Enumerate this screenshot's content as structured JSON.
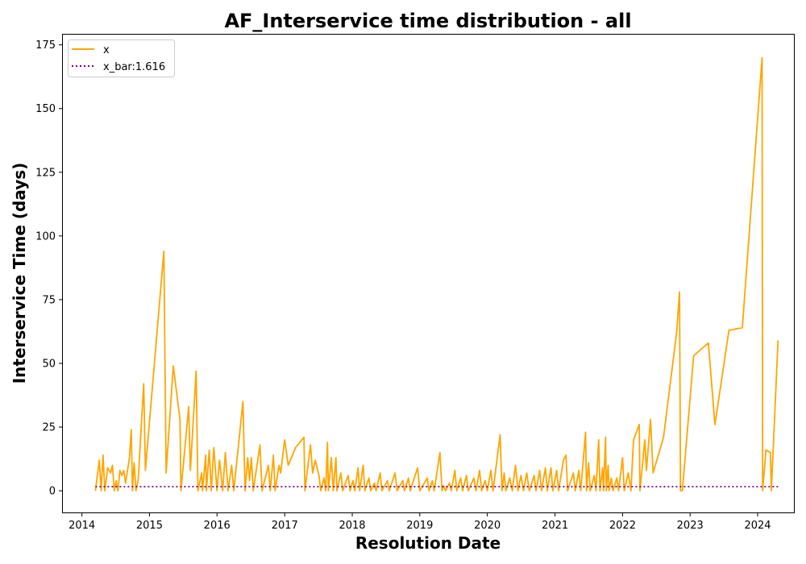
{
  "chart_data": {
    "type": "line",
    "title": "AF_Interservice time distribution - all",
    "xlabel": "Resolution Date",
    "ylabel": "Interservice Time (days)",
    "xlim": [
      "2013-09-20",
      "2024-07-15"
    ],
    "ylim": [
      -8.5,
      179
    ],
    "x_ticks": [
      "2014",
      "2015",
      "2016",
      "2017",
      "2018",
      "2019",
      "2020",
      "2021",
      "2022",
      "2023",
      "2024"
    ],
    "y_ticks": [
      0,
      25,
      50,
      75,
      100,
      125,
      150,
      175
    ],
    "grid": false,
    "legend_position": "top-left",
    "series": [
      {
        "name": "x",
        "color": "#ffa500",
        "style": "solid",
        "points": [
          [
            "2014-03-15",
            0
          ],
          [
            "2014-04-05",
            12
          ],
          [
            "2014-04-15",
            0
          ],
          [
            "2014-04-25",
            14
          ],
          [
            "2014-05-05",
            0
          ],
          [
            "2014-05-20",
            9
          ],
          [
            "2014-06-05",
            7
          ],
          [
            "2014-06-15",
            10
          ],
          [
            "2014-06-25",
            0
          ],
          [
            "2014-07-05",
            4
          ],
          [
            "2014-07-15",
            0
          ],
          [
            "2014-07-25",
            8
          ],
          [
            "2014-08-05",
            6
          ],
          [
            "2014-08-15",
            8
          ],
          [
            "2014-08-25",
            3
          ],
          [
            "2014-09-15",
            13
          ],
          [
            "2014-09-25",
            24
          ],
          [
            "2014-10-01",
            0
          ],
          [
            "2014-10-10",
            11
          ],
          [
            "2014-10-20",
            0
          ],
          [
            "2014-11-01",
            4
          ],
          [
            "2014-12-01",
            42
          ],
          [
            "2014-12-10",
            8
          ],
          [
            "2015-03-20",
            94
          ],
          [
            "2015-04-01",
            7
          ],
          [
            "2015-05-10",
            49
          ],
          [
            "2015-06-15",
            28
          ],
          [
            "2015-06-20",
            0
          ],
          [
            "2015-08-01",
            33
          ],
          [
            "2015-08-10",
            8
          ],
          [
            "2015-09-10",
            47
          ],
          [
            "2015-09-20",
            0
          ],
          [
            "2015-10-10",
            7
          ],
          [
            "2015-10-15",
            0
          ],
          [
            "2015-11-01",
            14
          ],
          [
            "2015-11-05",
            0
          ],
          [
            "2015-11-20",
            16
          ],
          [
            "2015-12-01",
            0
          ],
          [
            "2015-12-15",
            17
          ],
          [
            "2016-01-01",
            0
          ],
          [
            "2016-01-15",
            12
          ],
          [
            "2016-02-01",
            0
          ],
          [
            "2016-02-15",
            15
          ],
          [
            "2016-03-01",
            0
          ],
          [
            "2016-03-20",
            10
          ],
          [
            "2016-04-01",
            0
          ],
          [
            "2016-05-20",
            35
          ],
          [
            "2016-06-01",
            0
          ],
          [
            "2016-06-15",
            13
          ],
          [
            "2016-06-25",
            4
          ],
          [
            "2016-07-05",
            13
          ],
          [
            "2016-07-15",
            0
          ],
          [
            "2016-08-20",
            18
          ],
          [
            "2016-09-01",
            0
          ],
          [
            "2016-10-05",
            10
          ],
          [
            "2016-10-15",
            0
          ],
          [
            "2016-11-01",
            14
          ],
          [
            "2016-11-10",
            0
          ],
          [
            "2016-12-01",
            10
          ],
          [
            "2016-12-10",
            7
          ],
          [
            "2017-01-01",
            20
          ],
          [
            "2017-01-20",
            10
          ],
          [
            "2017-03-01",
            17
          ],
          [
            "2017-04-15",
            21
          ],
          [
            "2017-04-20",
            0
          ],
          [
            "2017-05-20",
            18
          ],
          [
            "2017-06-01",
            7
          ],
          [
            "2017-06-15",
            12
          ],
          [
            "2017-07-05",
            6
          ],
          [
            "2017-07-15",
            0
          ],
          [
            "2017-08-01",
            5
          ],
          [
            "2017-08-10",
            0
          ],
          [
            "2017-08-20",
            19
          ],
          [
            "2017-08-25",
            0
          ],
          [
            "2017-09-10",
            13
          ],
          [
            "2017-09-20",
            0
          ],
          [
            "2017-10-05",
            13
          ],
          [
            "2017-10-10",
            0
          ],
          [
            "2017-11-01",
            7
          ],
          [
            "2017-11-10",
            0
          ],
          [
            "2017-12-10",
            6
          ],
          [
            "2017-12-20",
            0
          ],
          [
            "2018-01-05",
            4
          ],
          [
            "2018-01-15",
            0
          ],
          [
            "2018-02-01",
            9
          ],
          [
            "2018-02-10",
            0
          ],
          [
            "2018-03-01",
            10
          ],
          [
            "2018-03-10",
            0
          ],
          [
            "2018-04-01",
            5
          ],
          [
            "2018-04-10",
            0
          ],
          [
            "2018-05-01",
            3
          ],
          [
            "2018-05-10",
            0
          ],
          [
            "2018-06-01",
            7
          ],
          [
            "2018-06-10",
            0
          ],
          [
            "2018-07-10",
            4
          ],
          [
            "2018-07-20",
            0
          ],
          [
            "2018-08-20",
            7
          ],
          [
            "2018-09-01",
            0
          ],
          [
            "2018-10-01",
            4
          ],
          [
            "2018-10-10",
            0
          ],
          [
            "2018-11-01",
            5
          ],
          [
            "2018-11-10",
            0
          ],
          [
            "2018-12-20",
            9
          ],
          [
            "2019-01-01",
            0
          ],
          [
            "2019-02-10",
            5
          ],
          [
            "2019-02-20",
            0
          ],
          [
            "2019-03-10",
            4
          ],
          [
            "2019-03-20",
            0
          ],
          [
            "2019-04-20",
            15
          ],
          [
            "2019-05-01",
            0
          ],
          [
            "2019-05-10",
            2
          ],
          [
            "2019-05-20",
            0
          ],
          [
            "2019-06-10",
            3
          ],
          [
            "2019-06-20",
            0
          ],
          [
            "2019-07-10",
            8
          ],
          [
            "2019-07-20",
            0
          ],
          [
            "2019-08-10",
            5
          ],
          [
            "2019-08-20",
            0
          ],
          [
            "2019-09-10",
            6
          ],
          [
            "2019-09-20",
            0
          ],
          [
            "2019-10-20",
            5
          ],
          [
            "2019-11-01",
            0
          ],
          [
            "2019-11-20",
            8
          ],
          [
            "2019-12-01",
            0
          ],
          [
            "2019-12-20",
            4
          ],
          [
            "2020-01-01",
            0
          ],
          [
            "2020-01-20",
            8
          ],
          [
            "2020-02-01",
            0
          ],
          [
            "2020-03-10",
            22
          ],
          [
            "2020-03-20",
            0
          ],
          [
            "2020-04-01",
            7
          ],
          [
            "2020-04-10",
            0
          ],
          [
            "2020-05-01",
            5
          ],
          [
            "2020-05-15",
            0
          ],
          [
            "2020-06-01",
            10
          ],
          [
            "2020-06-15",
            0
          ],
          [
            "2020-07-01",
            6
          ],
          [
            "2020-07-15",
            0
          ],
          [
            "2020-08-01",
            7
          ],
          [
            "2020-08-15",
            0
          ],
          [
            "2020-09-10",
            6
          ],
          [
            "2020-09-20",
            0
          ],
          [
            "2020-10-10",
            8
          ],
          [
            "2020-10-20",
            0
          ],
          [
            "2020-11-10",
            9
          ],
          [
            "2020-11-20",
            0
          ],
          [
            "2020-12-10",
            9
          ],
          [
            "2020-12-20",
            0
          ],
          [
            "2021-01-10",
            8
          ],
          [
            "2021-01-20",
            0
          ],
          [
            "2021-02-15",
            12
          ],
          [
            "2021-03-01",
            14
          ],
          [
            "2021-03-10",
            0
          ],
          [
            "2021-04-10",
            7
          ],
          [
            "2021-04-20",
            0
          ],
          [
            "2021-05-10",
            8
          ],
          [
            "2021-05-20",
            0
          ],
          [
            "2021-06-15",
            23
          ],
          [
            "2021-06-20",
            0
          ],
          [
            "2021-07-01",
            11
          ],
          [
            "2021-07-10",
            0
          ],
          [
            "2021-08-01",
            6
          ],
          [
            "2021-08-10",
            0
          ],
          [
            "2021-08-25",
            20
          ],
          [
            "2021-09-01",
            0
          ],
          [
            "2021-09-15",
            9
          ],
          [
            "2021-09-20",
            0
          ],
          [
            "2021-10-01",
            21
          ],
          [
            "2021-10-05",
            0
          ],
          [
            "2021-10-15",
            10
          ],
          [
            "2021-10-20",
            0
          ],
          [
            "2021-11-01",
            5
          ],
          [
            "2021-11-10",
            0
          ],
          [
            "2021-12-01",
            5
          ],
          [
            "2021-12-10",
            0
          ],
          [
            "2022-01-01",
            13
          ],
          [
            "2022-01-10",
            0
          ],
          [
            "2022-02-01",
            7
          ],
          [
            "2022-02-15",
            0
          ],
          [
            "2022-03-01",
            20
          ],
          [
            "2022-04-01",
            26
          ],
          [
            "2022-04-05",
            0
          ],
          [
            "2022-05-01",
            20
          ],
          [
            "2022-05-10",
            8
          ],
          [
            "2022-06-01",
            28
          ],
          [
            "2022-06-15",
            7
          ],
          [
            "2022-08-10",
            21
          ],
          [
            "2022-10-20",
            62
          ],
          [
            "2022-11-05",
            78
          ],
          [
            "2022-11-10",
            0
          ],
          [
            "2022-11-20",
            0
          ],
          [
            "2023-01-20",
            53
          ],
          [
            "2023-04-10",
            58
          ],
          [
            "2023-05-15",
            26
          ],
          [
            "2023-07-30",
            63
          ],
          [
            "2023-10-10",
            64
          ],
          [
            "2024-01-25",
            170
          ],
          [
            "2024-01-28",
            0
          ],
          [
            "2024-02-15",
            16
          ],
          [
            "2024-03-10",
            15
          ],
          [
            "2024-03-15",
            0
          ],
          [
            "2024-04-20",
            59
          ]
        ]
      },
      {
        "name": "x_bar:1.616",
        "color": "#800080",
        "style": "dotted",
        "points": [
          [
            "2014-03-15",
            1.616
          ],
          [
            "2024-04-20",
            1.616
          ]
        ]
      }
    ]
  }
}
